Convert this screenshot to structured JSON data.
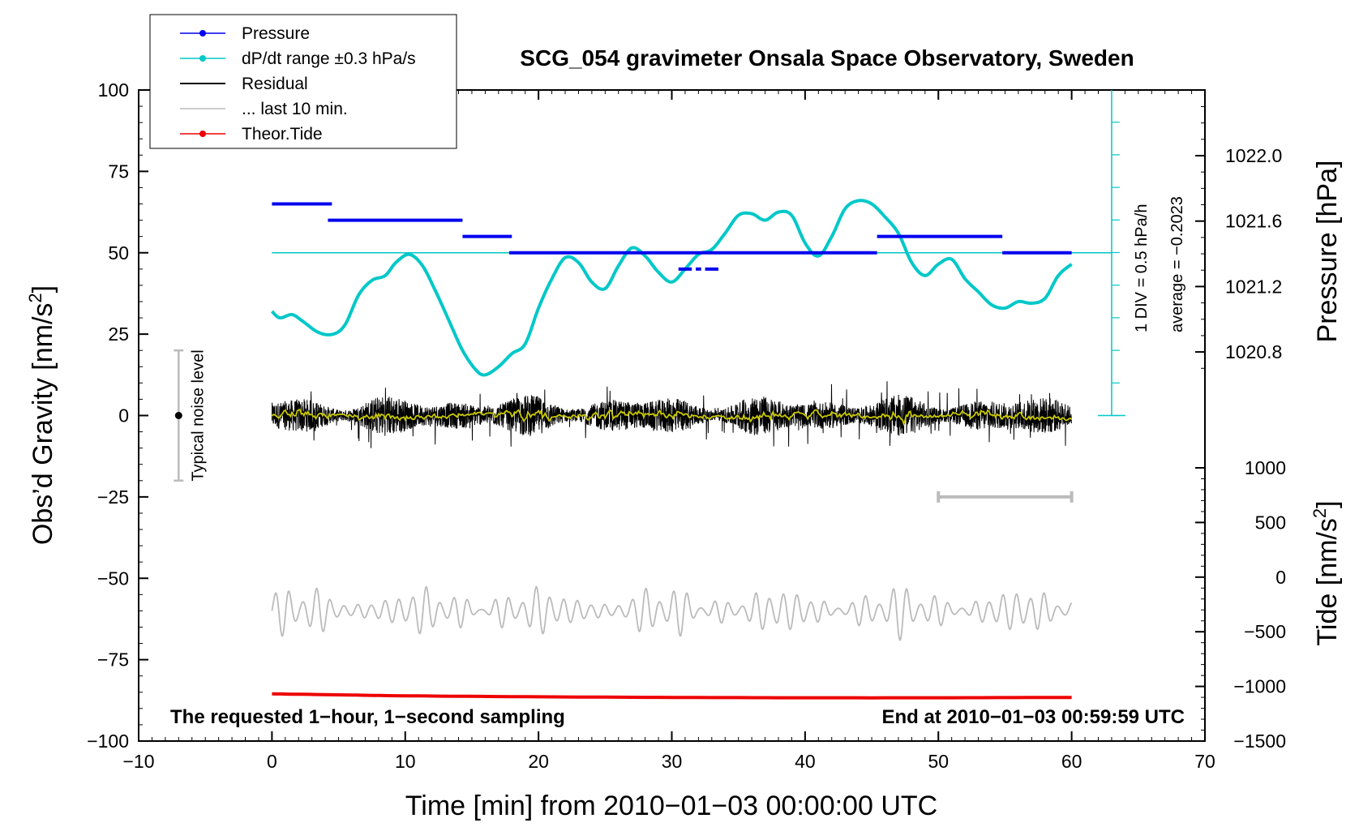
{
  "chart_data": {
    "type": "line",
    "title": "SCG_054 gravimeter Onsala Space Observatory, Sweden",
    "xlabel": "Time [min] from 2010−01−03 00:00:00 UTC",
    "ylabel": "Obs’d Gravity [nm/s²]",
    "ylabel_parts": {
      "base": "Obs’d Gravity [nm/s",
      "sup": "2",
      "close": "]"
    },
    "y2label": "Pressure [hPa]",
    "y3label": "Tide [nm/s²]",
    "y3label_parts": {
      "base": "Tide [nm/s",
      "sup": "2",
      "close": "]"
    },
    "xlim": [
      -10,
      70
    ],
    "ylim": [
      -100,
      100
    ],
    "x_ticks": [
      -10,
      0,
      10,
      20,
      30,
      40,
      50,
      60,
      70
    ],
    "x_tick_labels": [
      "−10",
      "0",
      "10",
      "20",
      "30",
      "40",
      "50",
      "60",
      "70"
    ],
    "y_ticks": [
      100,
      75,
      50,
      25,
      0,
      -25,
      -50,
      -75,
      -100
    ],
    "y_tick_labels": [
      "100",
      "75",
      "50",
      "25",
      "0",
      "−25",
      "−50",
      "−75",
      "−100"
    ],
    "pressure_axis": {
      "ticks": [
        1022.0,
        1021.6,
        1021.2,
        1020.8
      ],
      "tick_labels": [
        "1022.0",
        "1021.6",
        "1021.2",
        "1020.8"
      ],
      "range": [
        1020.4,
        1022.4
      ]
    },
    "tide_axis": {
      "ticks": [
        1000,
        500,
        0,
        -500,
        -1000,
        -1500
      ],
      "tick_labels": [
        "1000",
        "500",
        "0",
        "−500",
        "−1000",
        "−1500"
      ],
      "range": [
        -1500,
        1000
      ]
    },
    "legend": [
      {
        "name": "Pressure",
        "color": "#0000ee",
        "marker": true
      },
      {
        "name": "dP/dt range ±0.3 hPa/s",
        "color": "#00c8c8",
        "marker": true
      },
      {
        "name": "Residual",
        "color": "#000000",
        "marker": false
      },
      {
        "name": "... last 10 min.",
        "color": "#bbbbbb",
        "marker": false
      },
      {
        "name": "Theor.Tide",
        "color": "#ee0000",
        "marker": true
      }
    ],
    "series": [
      {
        "name": "Pressure",
        "color": "#0000ee",
        "unit": "gravity-axis",
        "segments": [
          {
            "x": [
              0,
              4.5
            ],
            "y": 65
          },
          {
            "x": [
              4.2,
              14.3
            ],
            "y": 60
          },
          {
            "x": [
              14.3,
              18
            ],
            "y": 55
          },
          {
            "x": [
              17.8,
              45.4
            ],
            "y": 50
          },
          {
            "x": [
              30.5,
              31.5
            ],
            "y": 45
          },
          {
            "x": [
              31.8,
              32.2
            ],
            "y": 45
          },
          {
            "x": [
              32.5,
              33.5
            ],
            "y": 45
          },
          {
            "x": [
              45.4,
              54.8
            ],
            "y": 55
          },
          {
            "x": [
              54.8,
              60
            ],
            "y": 50
          }
        ]
      },
      {
        "name": "dP/dt range ±0.3 hPa/s",
        "color": "#00c8c8",
        "x": [
          0,
          0.6,
          1.5,
          2.3,
          3.5,
          4.6,
          5.5,
          6.5,
          7.5,
          8.5,
          9.3,
          10.3,
          11.3,
          12.3,
          13.3,
          14.3,
          15.3,
          16.0,
          17.0,
          18.0,
          19.0,
          20.0,
          21.0,
          22.0,
          23.0,
          24.0,
          25.0,
          26.0,
          27.0,
          28.0,
          29.0,
          30.0,
          31.0,
          32.0,
          33.0,
          34.0,
          35.0,
          36.0,
          37.0,
          38.0,
          39.0,
          40.0,
          41.0,
          42.0,
          43.0,
          44.0,
          45.0,
          46.0,
          47.0,
          48.0,
          49.0,
          50.0,
          51.0,
          52.0,
          53.0,
          54.0,
          55.0,
          56.0,
          57.0,
          58.0,
          59.0,
          60.0
        ],
        "y": [
          32,
          30,
          31,
          29,
          25.5,
          25,
          28,
          37,
          41.5,
          43,
          47,
          49.5,
          46,
          38,
          29,
          20,
          14,
          12.5,
          15,
          19,
          22,
          33,
          42,
          48.5,
          47,
          41,
          39,
          46,
          51.5,
          49,
          44,
          41,
          45,
          49.5,
          51,
          56,
          61.5,
          62,
          60,
          62.5,
          61.5,
          53,
          49,
          55,
          63.5,
          66,
          65,
          61,
          56,
          47,
          43,
          46.5,
          48,
          42,
          38,
          34,
          33,
          35,
          34.5,
          36,
          43,
          46.5
        ]
      },
      {
        "name": "Residual",
        "color": "#000000",
        "x_range": [
          0,
          60
        ],
        "samples_per_sec": 1,
        "y_range": [
          -17,
          15
        ],
        "y_center": 0
      },
      {
        "name": "Residual smoothed",
        "color": "#c8c800",
        "x_range": [
          0,
          60
        ],
        "y_approx": 0
      },
      {
        "name": "... last 10 min.",
        "color": "#bbbbbb",
        "x_range": [
          0,
          60
        ],
        "y_center": -60,
        "y_range": [
          -71,
          -52
        ]
      },
      {
        "name": "Theor.Tide",
        "color": "#ee0000",
        "x": [
          0,
          5,
          10,
          20,
          30,
          40,
          50,
          60
        ],
        "y": [
          -85.5,
          -85.8,
          -86.1,
          -86.4,
          -86.6,
          -86.7,
          -86.7,
          -86.6
        ]
      }
    ],
    "reference_line": {
      "y": 50,
      "color": "#00c8c8"
    },
    "dpdt_scale": {
      "label_1": "1 DIV = 0.5 hPa/h",
      "label_2": "average = −0.2023"
    },
    "noise_bar": {
      "label": "Typical noise level",
      "x": -7,
      "y_low": -20,
      "y_high": 20,
      "y_center": 0
    },
    "last10_bar": {
      "x": [
        50,
        60
      ],
      "y": -25
    },
    "annotations": {
      "bottom_left": "The requested 1−hour, 1−second sampling",
      "bottom_right": "End at 2010−01−03 00:59:59 UTC"
    }
  }
}
